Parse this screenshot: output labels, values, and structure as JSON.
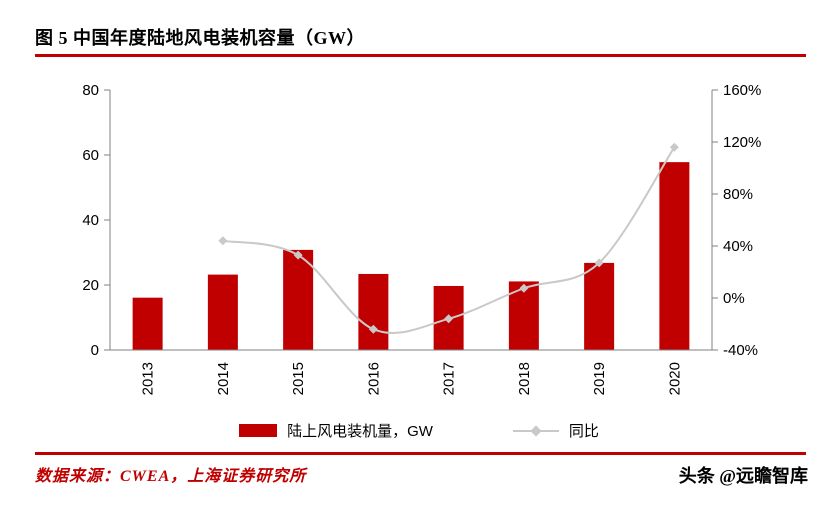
{
  "page": {
    "title": "图 5 中国年度陆地风电装机容量（GW）",
    "source": "数据来源：CWEA，上海证券研究所",
    "watermark": "头条 @远瞻智库"
  },
  "colors": {
    "bar": "#C00000",
    "line": "#C9C9C9",
    "accent": "#C00000",
    "axis": "#808080",
    "text": "#000000"
  },
  "chart_data": {
    "type": "combo-bar-line",
    "title": "图 5 中国年度陆地风电装机容量（GW）",
    "categories": [
      "2013",
      "2014",
      "2015",
      "2016",
      "2017",
      "2018",
      "2019",
      "2020"
    ],
    "series": [
      {
        "name": "陆上风电装机量，GW",
        "type": "bar",
        "axis": "left",
        "values": [
          16.1,
          23.2,
          30.8,
          23.4,
          19.7,
          21.1,
          26.8,
          57.8
        ]
      },
      {
        "name": "同比",
        "type": "line",
        "axis": "right",
        "values": [
          null,
          44,
          33,
          -24,
          -16,
          7.5,
          27,
          116
        ]
      }
    ],
    "left_axis": {
      "min": 0,
      "max": 80,
      "ticks": [
        0,
        20,
        40,
        60,
        80
      ],
      "suffix": ""
    },
    "right_axis": {
      "min": -40,
      "max": 160,
      "ticks": [
        -40,
        0,
        40,
        80,
        120,
        160
      ],
      "suffix": "%"
    },
    "grid": false,
    "legend_position": "bottom",
    "x_tick_rotation": -90
  }
}
